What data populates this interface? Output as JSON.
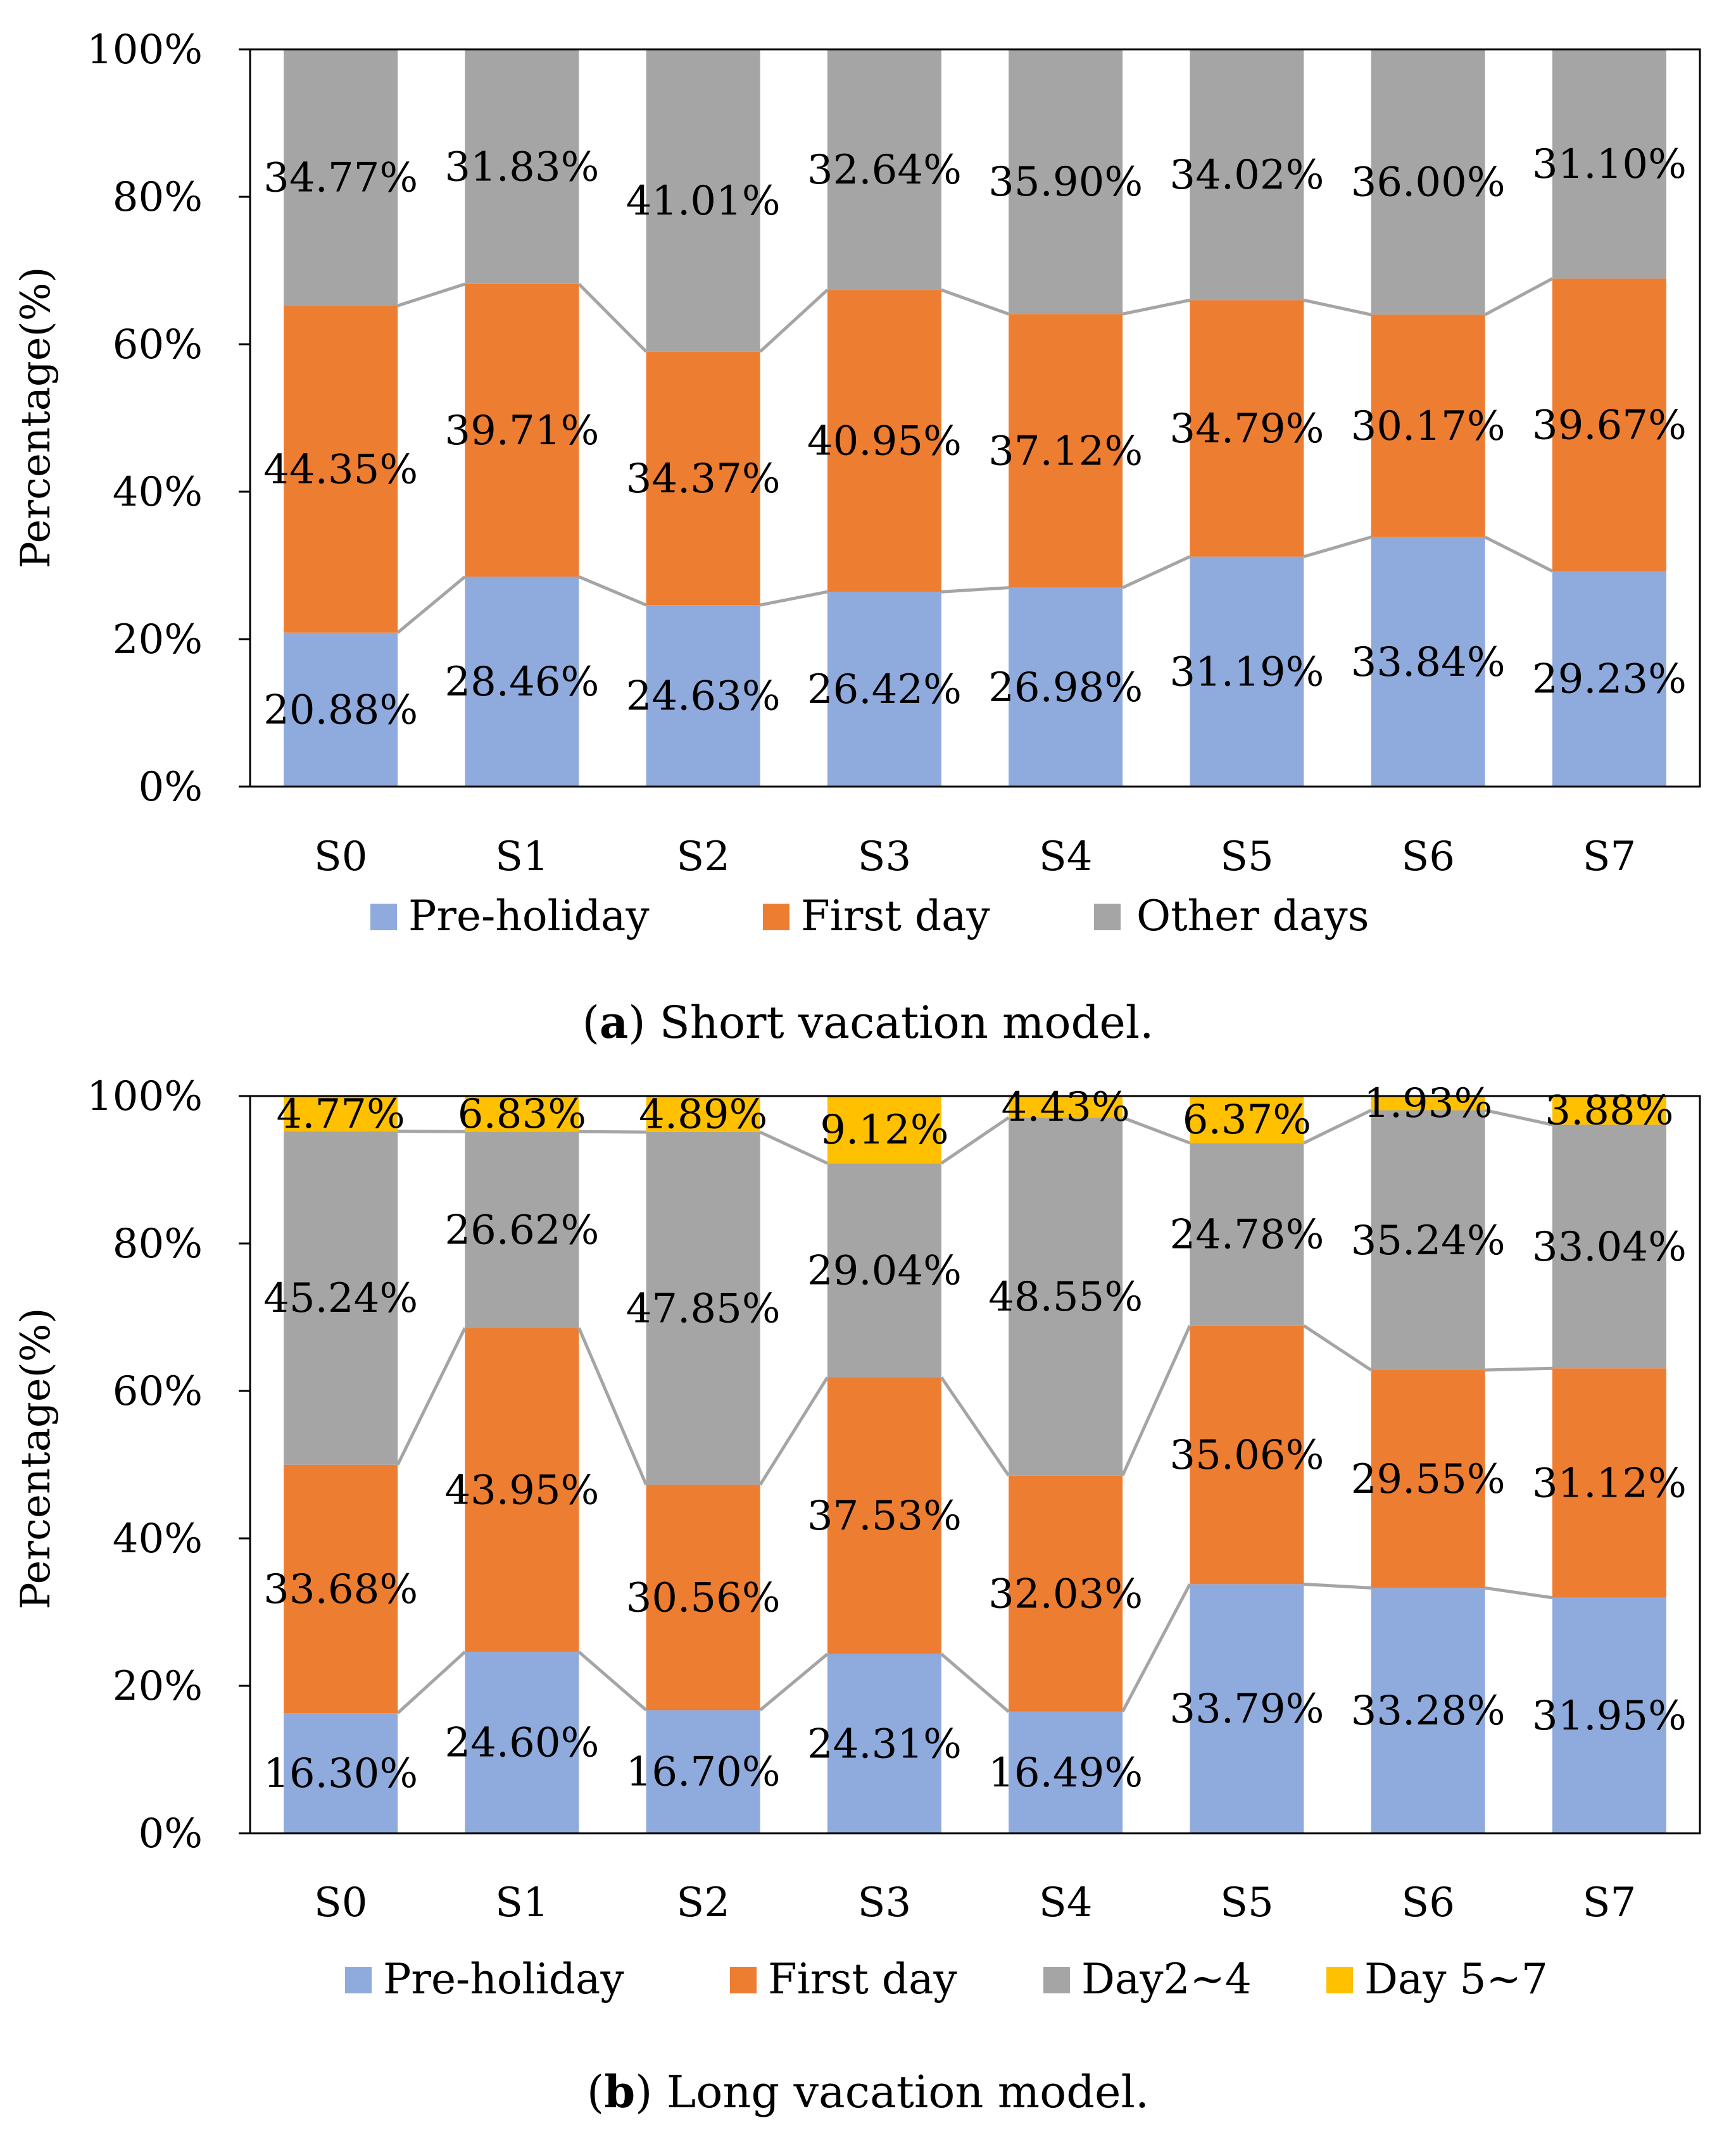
{
  "chart_data": [
    {
      "type": "bar",
      "stacked": true,
      "panel_label": "a",
      "caption": "Short vacation model.",
      "ylabel": "Percentage(%)",
      "xlabel": "",
      "ylim": [
        0,
        100
      ],
      "yticks": [
        "0%",
        "20%",
        "40%",
        "60%",
        "80%",
        "100%"
      ],
      "categories": [
        "S0",
        "S1",
        "S2",
        "S3",
        "S4",
        "S5",
        "S6",
        "S7"
      ],
      "series": [
        {
          "name": "Pre-holiday",
          "color": "#8FAADC",
          "values": [
            20.88,
            28.46,
            24.63,
            26.42,
            26.98,
            31.19,
            33.84,
            29.23
          ],
          "labels": [
            "20.88%",
            "28.46%",
            "24.63%",
            "26.42%",
            "26.98%",
            "31.19%",
            "33.84%",
            "29.23%"
          ]
        },
        {
          "name": "First day",
          "color": "#ED7D31",
          "values": [
            44.35,
            39.71,
            34.37,
            40.95,
            37.12,
            34.79,
            30.17,
            39.67
          ],
          "labels": [
            "44.35%",
            "39.71%",
            "34.37%",
            "40.95%",
            "37.12%",
            "34.79%",
            "30.17%",
            "39.67%"
          ]
        },
        {
          "name": "Other days",
          "color": "#A5A5A5",
          "values": [
            34.77,
            31.83,
            41.01,
            32.64,
            35.9,
            34.02,
            36.0,
            31.1
          ],
          "labels": [
            "34.77%",
            "31.83%",
            "41.01%",
            "32.64%",
            "35.90%",
            "34.02%",
            "36.00%",
            "31.10%"
          ]
        }
      ],
      "series_lines": true,
      "legend": "bottom"
    },
    {
      "type": "bar",
      "stacked": true,
      "panel_label": "b",
      "caption": "Long vacation model.",
      "ylabel": "Percentage(%)",
      "xlabel": "",
      "ylim": [
        0,
        100
      ],
      "yticks": [
        "0%",
        "20%",
        "40%",
        "60%",
        "80%",
        "100%"
      ],
      "categories": [
        "S0",
        "S1",
        "S2",
        "S3",
        "S4",
        "S5",
        "S6",
        "S7"
      ],
      "series": [
        {
          "name": "Pre-holiday",
          "color": "#8FAADC",
          "values": [
            16.3,
            24.6,
            16.7,
            24.31,
            16.49,
            33.79,
            33.28,
            31.95
          ],
          "labels": [
            "16.30%",
            "24.60%",
            "16.70%",
            "24.31%",
            "16.49%",
            "33.79%",
            "33.28%",
            "31.95%"
          ]
        },
        {
          "name": "First day",
          "color": "#ED7D31",
          "values": [
            33.68,
            43.95,
            30.56,
            37.53,
            32.03,
            35.06,
            29.55,
            31.12
          ],
          "labels": [
            "33.68%",
            "43.95%",
            "30.56%",
            "37.53%",
            "32.03%",
            "35.06%",
            "29.55%",
            "31.12%"
          ]
        },
        {
          "name": "Day2~4",
          "color": "#A5A5A5",
          "values": [
            45.24,
            26.62,
            47.85,
            29.04,
            48.55,
            24.78,
            35.24,
            33.04
          ],
          "labels": [
            "45.24%",
            "26.62%",
            "47.85%",
            "29.04%",
            "48.55%",
            "24.78%",
            "35.24%",
            "33.04%"
          ]
        },
        {
          "name": "Day 5~7",
          "color": "#FFC000",
          "values": [
            4.77,
            6.83,
            4.89,
            9.12,
            4.43,
            6.37,
            1.93,
            3.88
          ],
          "labels": [
            "4.77%",
            "6.83%",
            "4.89%",
            "9.12%",
            "4.43%",
            "6.37%",
            "1.93%",
            "3.88%"
          ]
        }
      ],
      "series_lines": true,
      "legend": "bottom"
    }
  ]
}
